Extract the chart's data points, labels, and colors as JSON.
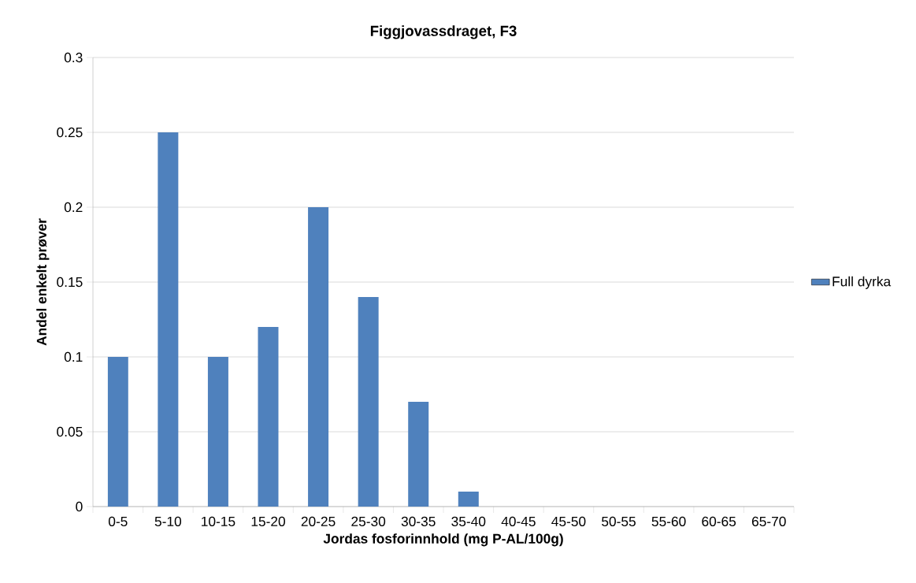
{
  "chart_data": {
    "type": "bar",
    "title": "Figgjovassdraget, F3",
    "xlabel": "Jordas fosforinnhold (mg P-AL/100g)",
    "ylabel": "Andel enkelt prøver",
    "categories": [
      "0-5",
      "5-10",
      "10-15",
      "15-20",
      "20-25",
      "25-30",
      "30-35",
      "35-40",
      "40-45",
      "45-50",
      "50-55",
      "55-60",
      "60-65",
      "65-70"
    ],
    "series": [
      {
        "name": "Full dyrka",
        "color": "#4f81bd",
        "values": [
          0.1,
          0.25,
          0.1,
          0.12,
          0.2,
          0.14,
          0.07,
          0.01,
          0,
          0,
          0,
          0,
          0,
          0
        ]
      }
    ],
    "ylim": [
      0,
      0.3
    ],
    "yticks": [
      0,
      0.05,
      0.1,
      0.15,
      0.2,
      0.25,
      0.3
    ],
    "grid": "y",
    "legend": "right"
  }
}
